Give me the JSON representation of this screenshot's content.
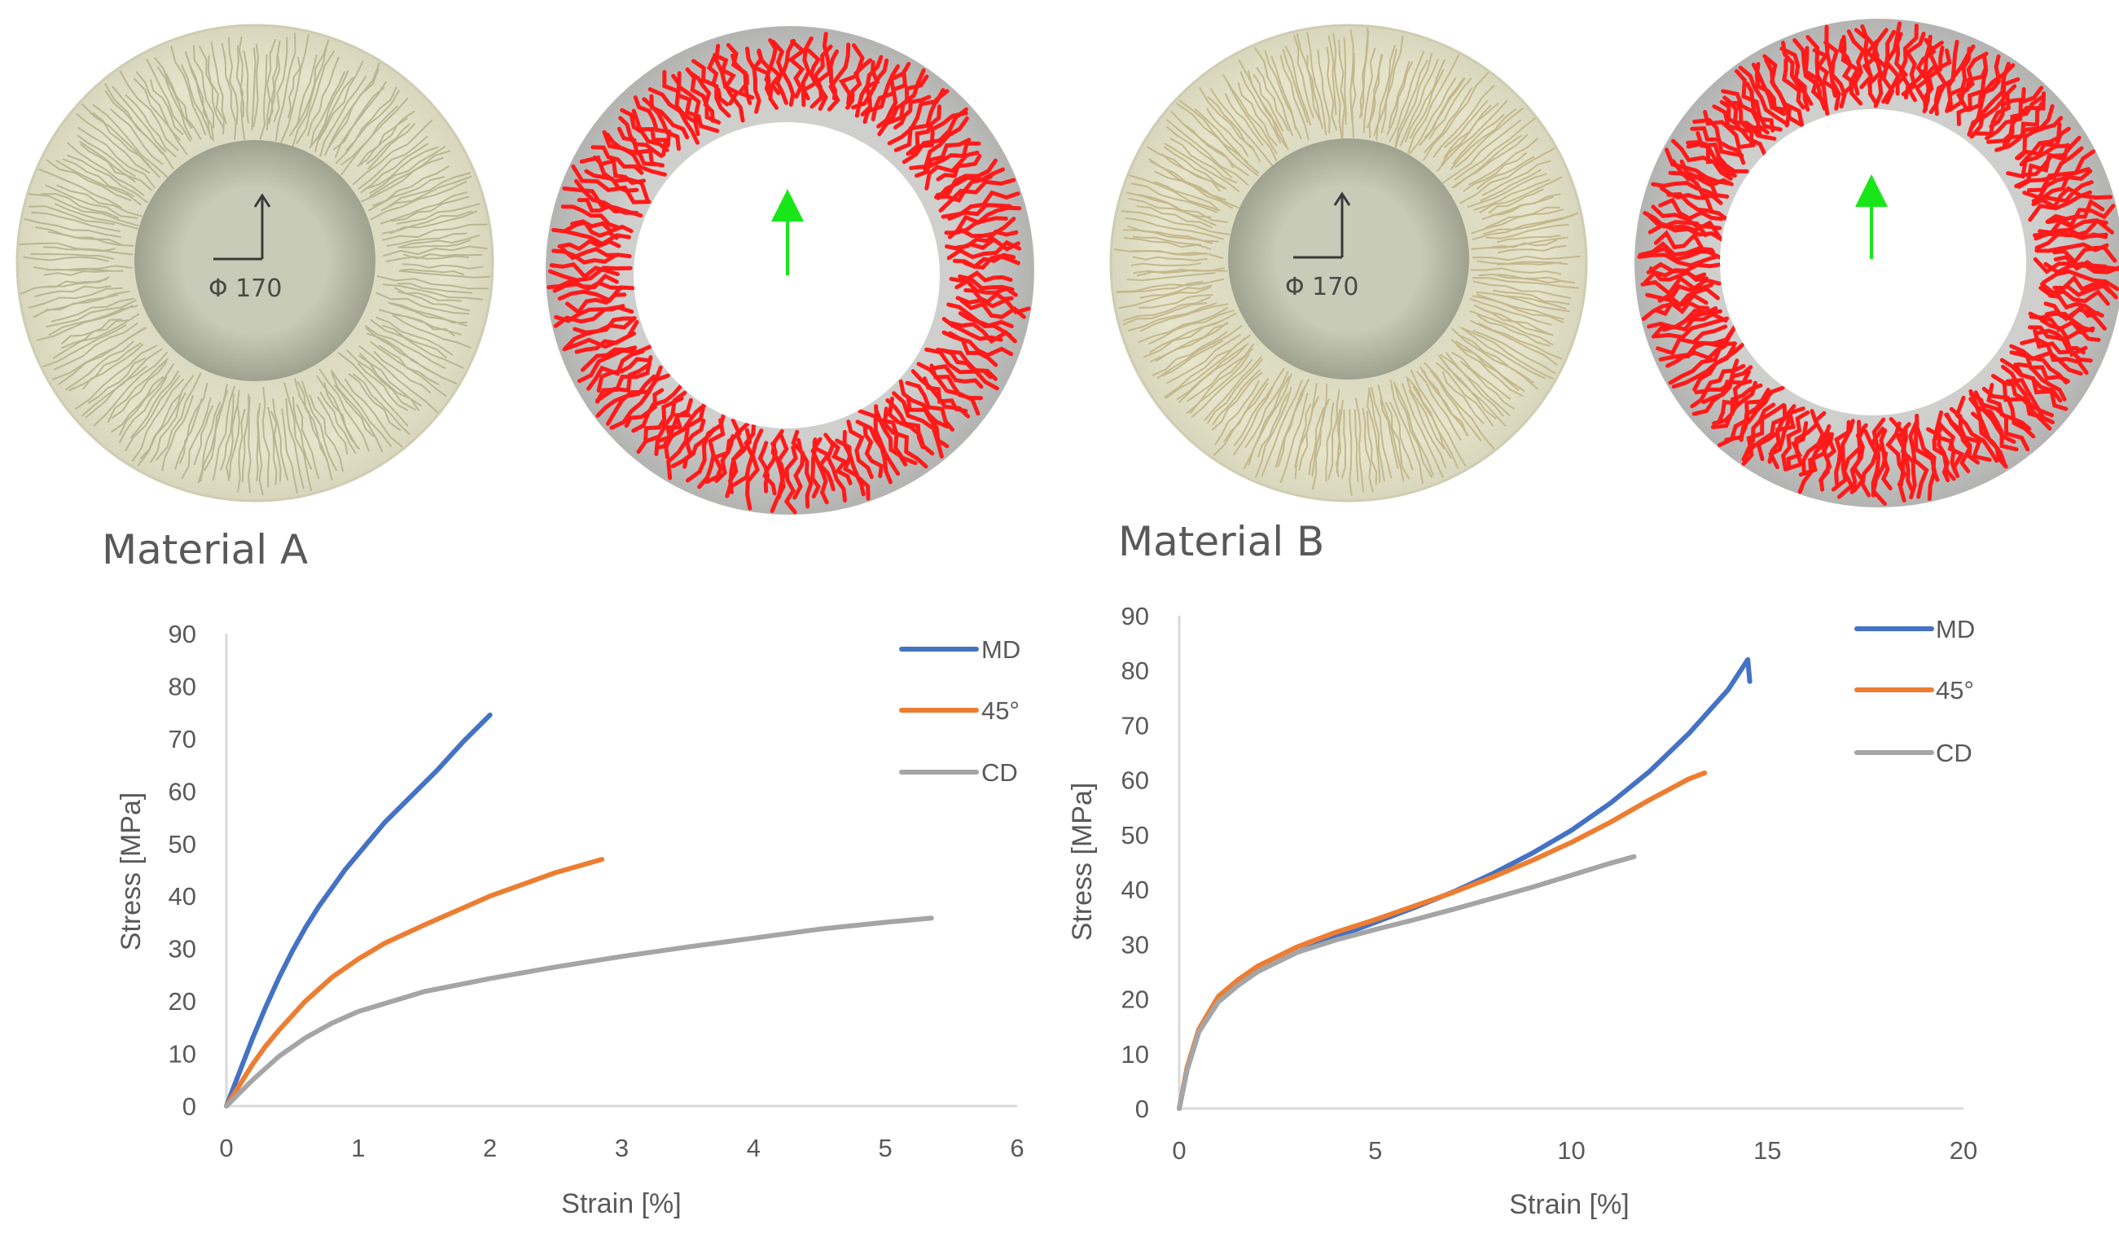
{
  "materials": [
    {
      "title": "Material A",
      "diameter_label": "Φ 170"
    },
    {
      "title": "Material B",
      "diameter_label": "Φ 170"
    }
  ],
  "colors": {
    "MD": "#4472C4",
    "45°": "#ED7D31",
    "CD": "#A5A5A5",
    "wrinkle_overlay": "#ff1a1a",
    "direction_arrow": "#19e619",
    "axis": "#d9d9d9",
    "text": "#595959"
  },
  "chart_data": [
    {
      "type": "line",
      "title": "",
      "xlabel": "Strain [%]",
      "ylabel": "Stress [MPa]",
      "xlim": [
        0,
        6
      ],
      "ylim": [
        0,
        90
      ],
      "xticks": [
        0,
        1,
        2,
        3,
        4,
        5,
        6
      ],
      "yticks": [
        0,
        10,
        20,
        30,
        40,
        50,
        60,
        70,
        80,
        90
      ],
      "grid": false,
      "legend_position": "top-right",
      "series": [
        {
          "name": "MD",
          "x": [
            0,
            0.1,
            0.2,
            0.3,
            0.4,
            0.5,
            0.6,
            0.7,
            0.8,
            0.9,
            1.0,
            1.2,
            1.4,
            1.6,
            1.8,
            2.0
          ],
          "y": [
            0,
            6.5,
            13,
            19,
            24.5,
            29.5,
            34,
            38,
            41.5,
            45,
            48,
            54,
            59,
            64,
            69.5,
            74.5
          ]
        },
        {
          "name": "45°",
          "x": [
            0,
            0.1,
            0.2,
            0.3,
            0.4,
            0.6,
            0.8,
            1.0,
            1.2,
            1.5,
            2.0,
            2.5,
            2.85
          ],
          "y": [
            0,
            4,
            8,
            11.5,
            14.5,
            20,
            24.5,
            28,
            31,
            34.5,
            40,
            44.5,
            47
          ]
        },
        {
          "name": "CD",
          "x": [
            0,
            0.2,
            0.4,
            0.6,
            0.8,
            1.0,
            1.5,
            2.0,
            2.5,
            3.0,
            3.5,
            4.0,
            4.5,
            5.0,
            5.35
          ],
          "y": [
            0,
            5,
            9.5,
            13,
            15.8,
            18,
            21.8,
            24.3,
            26.5,
            28.5,
            30.3,
            32,
            33.7,
            35,
            35.8
          ]
        }
      ]
    },
    {
      "type": "line",
      "title": "",
      "xlabel": "Strain [%]",
      "ylabel": "Stress [MPa]",
      "xlim": [
        0,
        20
      ],
      "ylim": [
        0,
        90
      ],
      "xticks": [
        0,
        5,
        10,
        15,
        20
      ],
      "yticks": [
        0,
        10,
        20,
        30,
        40,
        50,
        60,
        70,
        80,
        90
      ],
      "grid": false,
      "legend_position": "top-right",
      "series": [
        {
          "name": "MD",
          "x": [
            0,
            0.2,
            0.5,
            1,
            1.5,
            2,
            3,
            4,
            5,
            6,
            7,
            8,
            9,
            10,
            11,
            12,
            13,
            14,
            14.5,
            14.55
          ],
          "y": [
            0,
            7,
            14,
            19.5,
            22.5,
            25,
            28.5,
            31.3,
            34,
            36.7,
            39.6,
            42.9,
            46.6,
            50.8,
            55.8,
            61.6,
            68.5,
            76.5,
            82,
            78
          ]
        },
        {
          "name": "45°",
          "x": [
            0,
            0.2,
            0.5,
            1,
            1.5,
            2,
            3,
            4,
            5,
            6,
            7,
            8,
            9,
            10,
            11,
            12,
            13,
            13.4
          ],
          "y": [
            0,
            7.5,
            14.5,
            20.5,
            23.5,
            26,
            29.5,
            32.2,
            34.5,
            37,
            39.5,
            42.3,
            45.3,
            48.6,
            52.3,
            56.4,
            60.2,
            61.3
          ]
        },
        {
          "name": "CD",
          "x": [
            0,
            0.2,
            0.5,
            1,
            1.5,
            2,
            3,
            4,
            5,
            6,
            7,
            8,
            9,
            10,
            11,
            11.6
          ],
          "y": [
            0,
            7,
            14,
            19.5,
            22.5,
            25,
            28.5,
            30.8,
            32.7,
            34.5,
            36.4,
            38.4,
            40.4,
            42.6,
            44.8,
            46
          ]
        }
      ]
    }
  ]
}
